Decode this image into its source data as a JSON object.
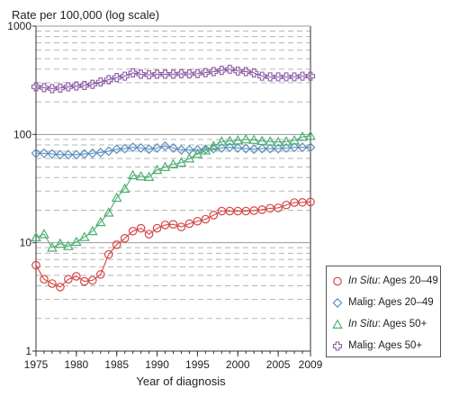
{
  "chart_data": {
    "type": "line",
    "title": "",
    "ylabel": "Rate per 100,000 (log scale)",
    "xlabel": "Year of diagnosis",
    "y_scale": "log",
    "ylim": [
      1,
      1000
    ],
    "xlim": [
      1975,
      2009
    ],
    "y_ticks": [
      "1",
      "10",
      "100",
      "1000"
    ],
    "x_ticks": [
      "1975",
      "1980",
      "1985",
      "1990",
      "1995",
      "2000",
      "2005",
      "2009"
    ],
    "grid": "horizontal dashed",
    "legend_position": "bottom-right",
    "x": [
      1975,
      1976,
      1977,
      1978,
      1979,
      1980,
      1981,
      1982,
      1983,
      1984,
      1985,
      1986,
      1987,
      1988,
      1989,
      1990,
      1991,
      1992,
      1993,
      1994,
      1995,
      1996,
      1997,
      1998,
      1999,
      2000,
      2001,
      2002,
      2003,
      2004,
      2005,
      2006,
      2007,
      2008,
      2009
    ],
    "series": [
      {
        "legend_italic": "In Situ",
        "legend_rest": ": Ages 20–49",
        "color": "#d64545",
        "marker": "circle",
        "values": [
          6.2,
          4.6,
          4.2,
          3.9,
          4.6,
          4.9,
          4.4,
          4.5,
          5.1,
          7.8,
          9.6,
          11.0,
          12.8,
          13.6,
          12.0,
          13.6,
          14.6,
          14.8,
          14.0,
          15.0,
          15.8,
          16.5,
          18.0,
          19.6,
          19.6,
          19.6,
          19.6,
          19.8,
          20.2,
          20.8,
          21.0,
          22.3,
          23.5,
          23.6,
          23.8
        ]
      },
      {
        "legend_label": "Malig: Ages 20–49",
        "color": "#5b8fbf",
        "marker": "diamond",
        "values": [
          67,
          67,
          66,
          65,
          65,
          65,
          66,
          67,
          68,
          70,
          73,
          74,
          76,
          75,
          73,
          75,
          78,
          75,
          72,
          72,
          72,
          73,
          74,
          75,
          76,
          75,
          74,
          73,
          74,
          74,
          74,
          75,
          76,
          76,
          76
        ]
      },
      {
        "legend_italic": "In Situ",
        "legend_rest": ": Ages 50+",
        "color": "#4daf73",
        "marker": "triangle",
        "values": [
          11.2,
          12.0,
          9.0,
          9.8,
          9.3,
          10.2,
          11.3,
          12.8,
          15.5,
          19.0,
          26.0,
          31.5,
          42.0,
          41.0,
          40.5,
          47.0,
          50.0,
          53.0,
          55.0,
          60.0,
          66.0,
          71.0,
          78.0,
          86.0,
          87.0,
          88.0,
          90.0,
          89.0,
          87.0,
          86.0,
          85.0,
          86.0,
          88.0,
          95.0,
          97.0
        ]
      },
      {
        "legend_label": "Malig: Ages 50+",
        "color": "#8a5aa5",
        "marker": "plus",
        "values": [
          275,
          270,
          265,
          268,
          275,
          280,
          283,
          290,
          305,
          320,
          335,
          345,
          370,
          360,
          355,
          360,
          360,
          360,
          363,
          362,
          364,
          372,
          380,
          390,
          400,
          385,
          380,
          370,
          345,
          340,
          340,
          340,
          340,
          345,
          345
        ]
      }
    ]
  }
}
